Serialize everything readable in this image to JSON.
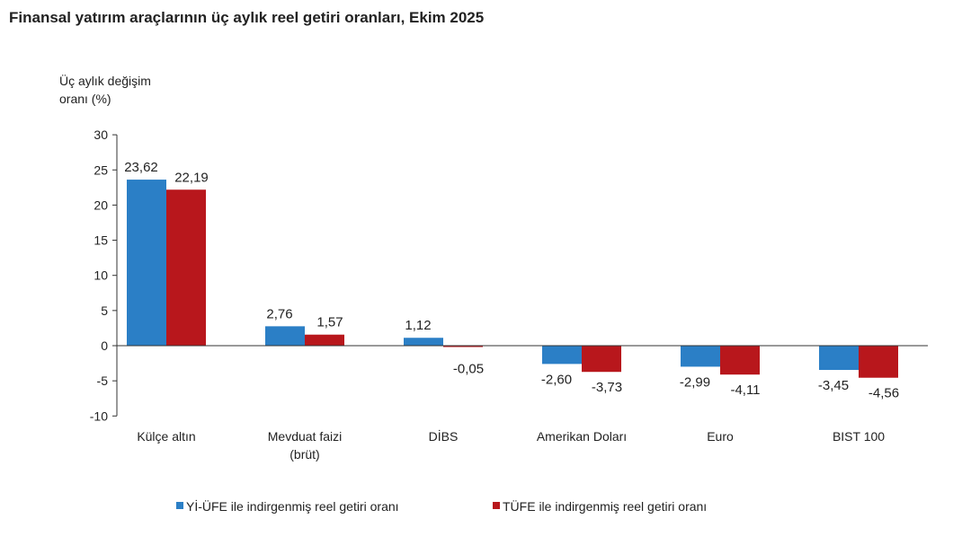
{
  "chart_data": {
    "type": "bar",
    "title": "Finansal yatırım araçlarının üç aylık reel getiri oranları, Ekim 2025",
    "ylabel": [
      "Üç aylık değişim",
      "oranı (%)"
    ],
    "ylim": [
      -10,
      30
    ],
    "yticks": [
      30,
      25,
      20,
      15,
      10,
      5,
      0,
      -5,
      -10
    ],
    "categories": [
      [
        "Külçe altın"
      ],
      [
        "Mevduat faizi",
        "(brüt)"
      ],
      [
        "DİBS"
      ],
      [
        "Amerikan Doları"
      ],
      [
        "Euro"
      ],
      [
        "BIST 100"
      ]
    ],
    "series": [
      {
        "name": "Yİ-ÜFE ile indirgenmiş reel getiri oranı",
        "color": "#2b7fc6",
        "values": [
          23.62,
          2.76,
          1.12,
          -2.6,
          -2.99,
          -3.45
        ],
        "labels": [
          "23,62",
          "2,76",
          "1,12",
          "-2,60",
          "-2,99",
          "-3,45"
        ]
      },
      {
        "name": "TÜFE ile indirgenmiş reel getiri oranı",
        "color": "#b8171c",
        "values": [
          22.19,
          1.57,
          -0.05,
          -3.73,
          -4.11,
          -4.56
        ],
        "labels": [
          "22,19",
          "1,57",
          "-0,05",
          "-3,73",
          "-4,11",
          "-4,56"
        ]
      }
    ],
    "legend": "bottom",
    "grid": false
  }
}
